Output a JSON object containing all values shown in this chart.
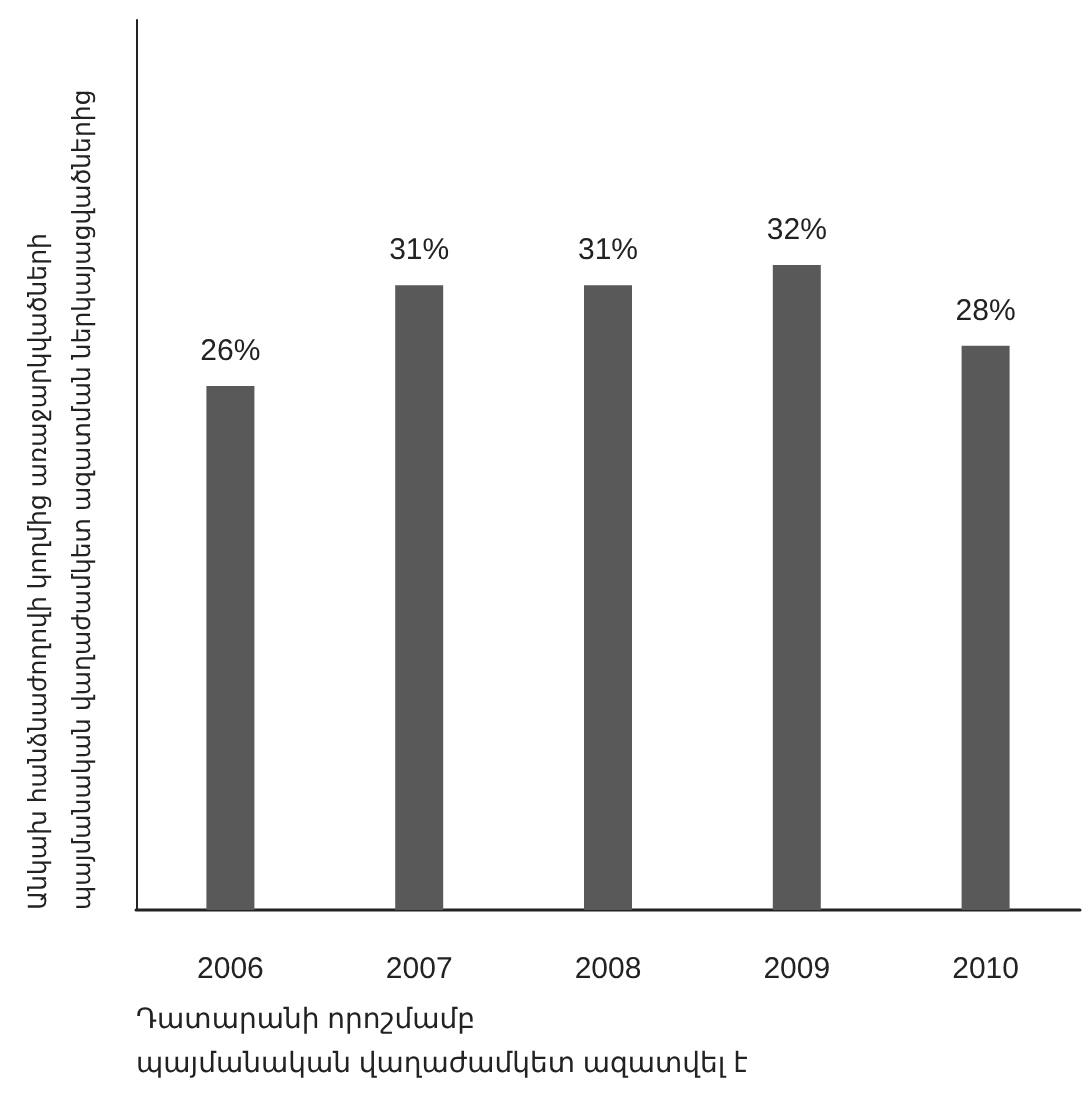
{
  "chart_data": {
    "type": "bar",
    "categories": [
      "2006",
      "2007",
      "2008",
      "2009",
      "2010"
    ],
    "values": [
      26,
      31,
      31,
      32,
      28
    ],
    "value_labels": [
      "26%",
      "31%",
      "31%",
      "32%",
      "28%"
    ],
    "color": "#595959",
    "xlabel": "Դատարանի որոշմամբ\nպայմանական վաղաժամկետ ազատվել է",
    "ylabel": "Անկախ հանձնաժողովի կողմից առաջարկվածների\nպայմանական վաղաժամկետ ազատման ներկայացվածներից",
    "grid": false
  }
}
